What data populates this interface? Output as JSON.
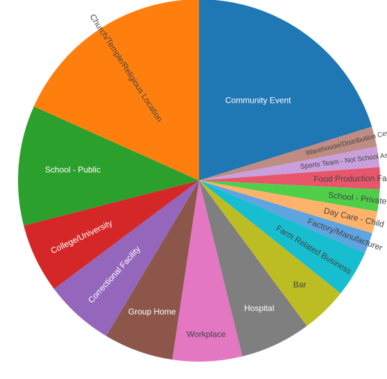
{
  "chart_data": {
    "type": "pie",
    "title": "",
    "legend": "none",
    "direction": "clockwise",
    "start": "12 o'clock",
    "slices": [
      {
        "label": "Community Event",
        "value": 20.2,
        "color": "#1f77b4",
        "text_color": "#ffffff"
      },
      {
        "label": "Warehouse/Distribution Centers",
        "value": 1.81,
        "color": "#bf8c83",
        "text_color": "#444444"
      },
      {
        "label": "Sports Team - Not School Associated",
        "value": 1.81,
        "color": "#c9a0dc",
        "text_color": "#444444"
      },
      {
        "label": "Food Production Facility",
        "value": 1.96,
        "color": "#e8566b",
        "text_color": "#444444"
      },
      {
        "label": "School - Private",
        "value": 1.96,
        "color": "#4fce4a",
        "text_color": "#444444"
      },
      {
        "label": "Day Care - Child",
        "value": 1.96,
        "color": "#ffb26b",
        "text_color": "#444444"
      },
      {
        "label": "Factory/Manufacturer",
        "value": 1.86,
        "color": "#5fa4e0",
        "text_color": "#444444"
      },
      {
        "label": "Farm Related Business",
        "value": 4.14,
        "color": "#17becf",
        "text_color": "#444444"
      },
      {
        "label": "Bar",
        "value": 4.14,
        "color": "#bcbd22",
        "text_color": "#444444"
      },
      {
        "label": "Hospital",
        "value": 6.31,
        "color": "#7f7f7f",
        "text_color": "#ffffff"
      },
      {
        "label": "Workplace",
        "value": 6.21,
        "color": "#e377c2",
        "text_color": "#444444"
      },
      {
        "label": "Group Home",
        "value": 6.21,
        "color": "#8c564b",
        "text_color": "#ffffff"
      },
      {
        "label": "Correctional Facility",
        "value": 6.21,
        "color": "#9467bd",
        "text_color": "#ffffff"
      },
      {
        "label": "College/University",
        "value": 6.21,
        "color": "#d62728",
        "text_color": "#ffffff"
      },
      {
        "label": "School - Public",
        "value": 10.7,
        "color": "#2ca02c",
        "text_color": "#ffffff"
      },
      {
        "label": "Church/Temple/Religious Location",
        "value": 18.3,
        "color": "#ff7f0e",
        "text_color": "#444444"
      }
    ]
  }
}
